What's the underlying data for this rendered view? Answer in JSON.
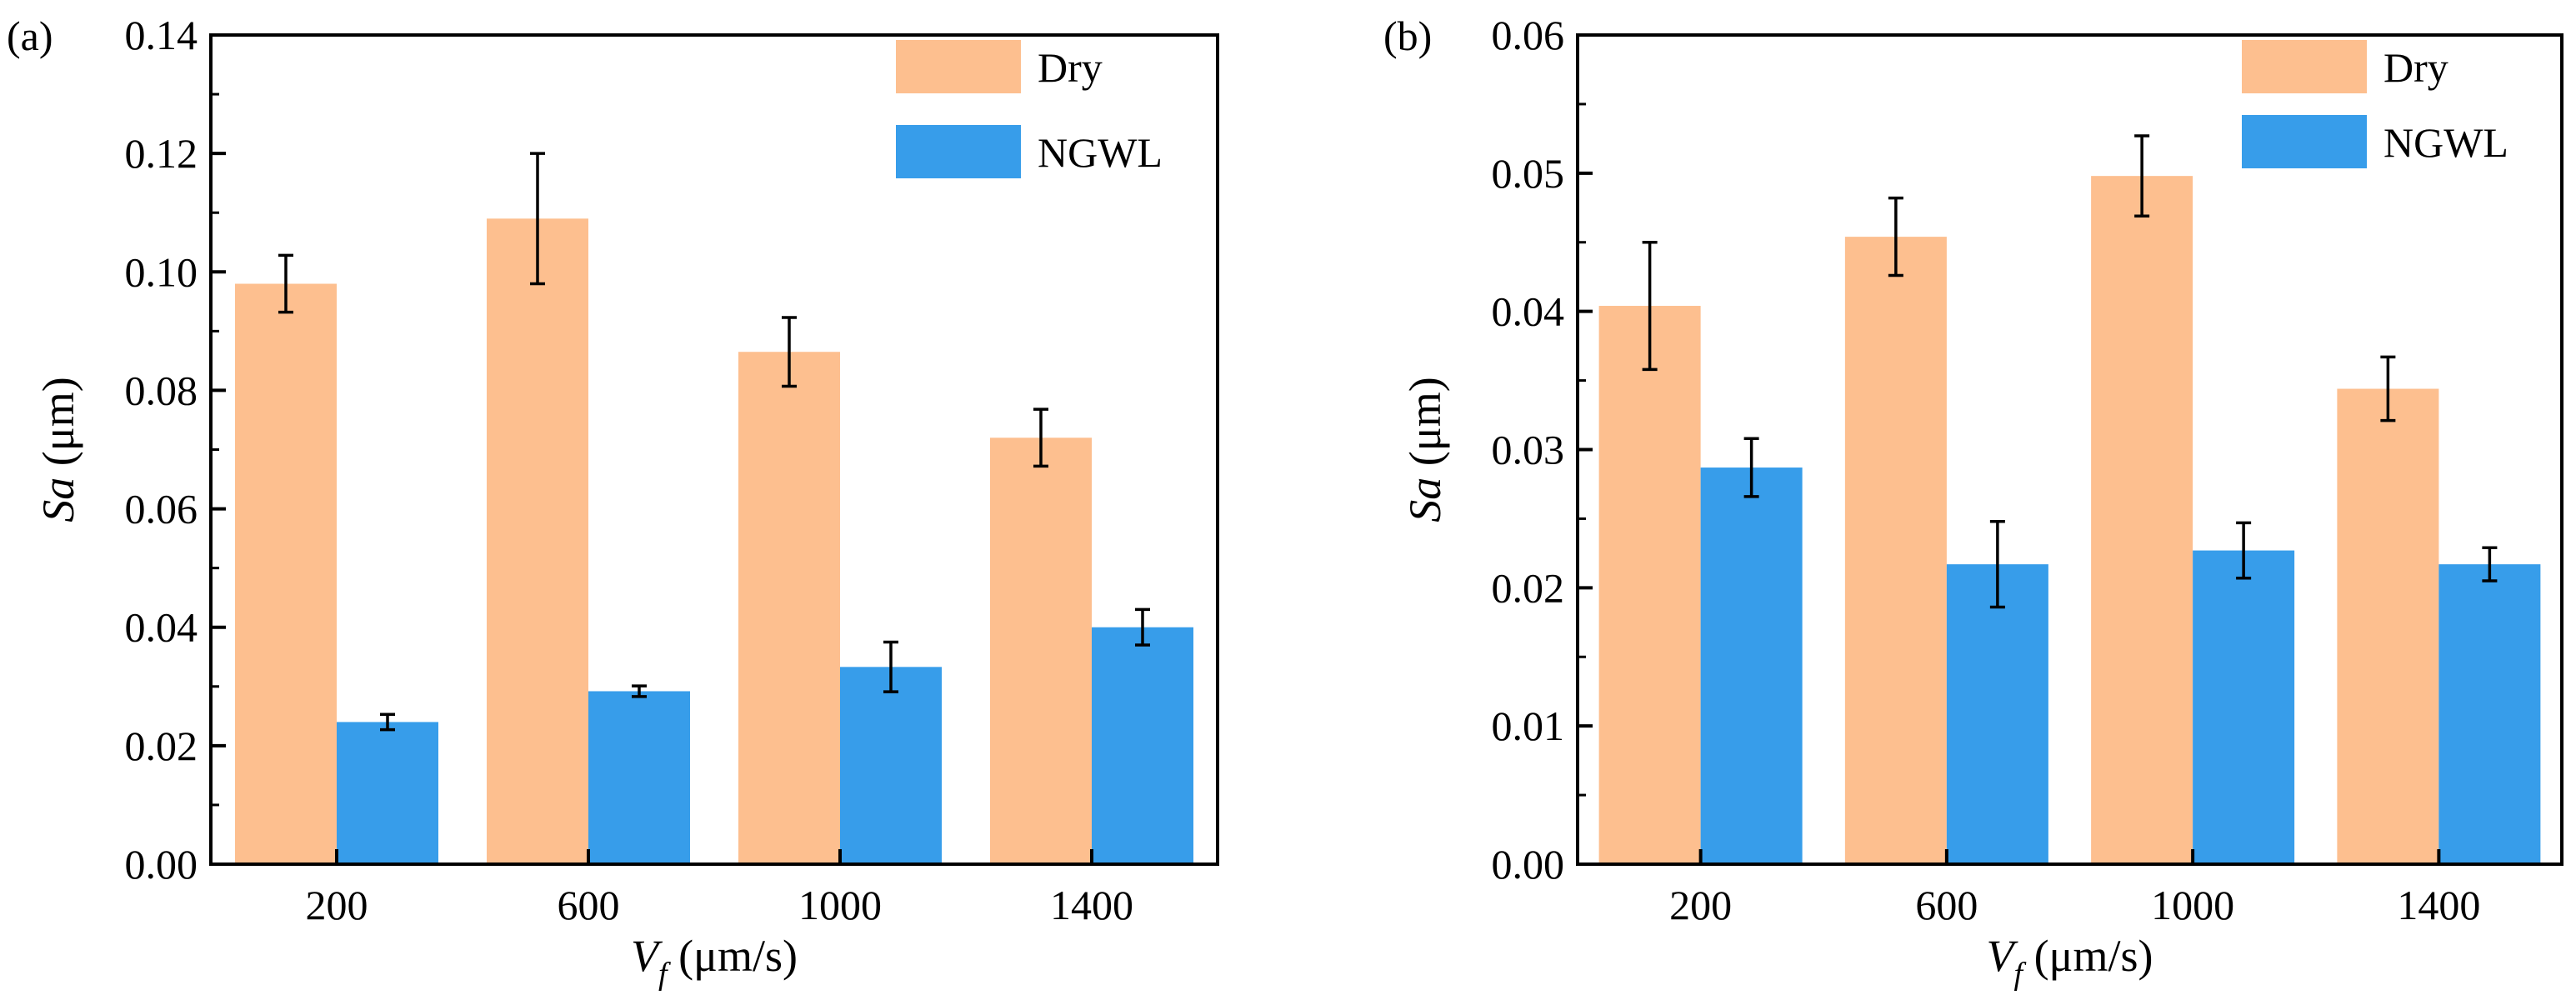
{
  "colors": {
    "dry": "#FDBF8F",
    "ngwl": "#379DEA",
    "axis": "#000000",
    "error_bar": "#000000"
  },
  "chart_data": [
    {
      "type": "bar",
      "panel_label": "(a)",
      "categories": [
        "200",
        "600",
        "1000",
        "1400"
      ],
      "series": [
        {
          "name": "Dry",
          "values": [
            0.098,
            0.109,
            0.0865,
            0.072
          ],
          "errors": [
            0.0048,
            0.011,
            0.0058,
            0.0048
          ]
        },
        {
          "name": "NGWL",
          "values": [
            0.024,
            0.0292,
            0.0333,
            0.04
          ],
          "errors": [
            0.0013,
            0.0009,
            0.0042,
            0.003
          ]
        }
      ],
      "ylim": [
        0,
        0.14
      ],
      "yticks": [
        "0.00",
        "0.02",
        "0.04",
        "0.06",
        "0.08",
        "0.10",
        "0.12",
        "0.14"
      ],
      "ylabel": {
        "italic": "Sa",
        "rest": " (μm)"
      },
      "xlabel": {
        "italic": "V",
        "sub": "f",
        "rest": " (μm/s)"
      },
      "legend": "top-right"
    },
    {
      "type": "bar",
      "panel_label": "(b)",
      "categories": [
        "200",
        "600",
        "1000",
        "1400"
      ],
      "series": [
        {
          "name": "Dry",
          "values": [
            0.0404,
            0.0454,
            0.0498,
            0.0344
          ],
          "errors": [
            0.0046,
            0.0028,
            0.0029,
            0.0023
          ]
        },
        {
          "name": "NGWL",
          "values": [
            0.0287,
            0.0217,
            0.0227,
            0.0217
          ],
          "errors": [
            0.0021,
            0.0031,
            0.002,
            0.0012
          ]
        }
      ],
      "ylim": [
        0,
        0.06
      ],
      "yticks": [
        "0.00",
        "0.01",
        "0.02",
        "0.03",
        "0.04",
        "0.05",
        "0.06"
      ],
      "ylabel": {
        "italic": "Sa",
        "rest": " (μm)"
      },
      "xlabel": {
        "italic": "V",
        "sub": "f",
        "rest": " (μm/s)"
      },
      "legend": "top-right"
    }
  ]
}
